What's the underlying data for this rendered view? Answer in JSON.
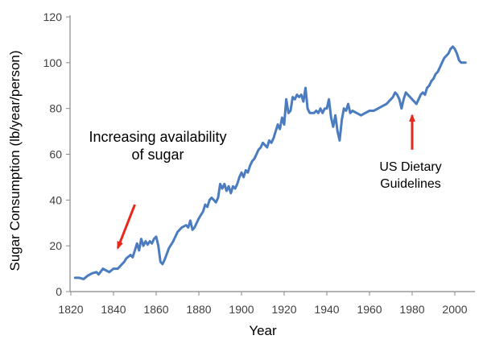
{
  "chart_data": {
    "type": "line",
    "title": "",
    "xlabel": "Year",
    "ylabel": "Sugar Consumption (lb/year/person)",
    "xlim": [
      1820,
      2010
    ],
    "ylim": [
      0,
      120
    ],
    "x_ticks": [
      1820,
      1840,
      1860,
      1880,
      1900,
      1920,
      1940,
      1960,
      1980,
      2000
    ],
    "y_ticks": [
      0,
      20,
      40,
      60,
      80,
      100,
      120
    ],
    "grid": false,
    "colors": {
      "line": "#4a7cbf",
      "arrow": "#e8281e",
      "axis": "#888888"
    },
    "series": [
      {
        "name": "",
        "points": [
          [
            1822,
            6
          ],
          [
            1824,
            6
          ],
          [
            1826,
            5.5
          ],
          [
            1828,
            7
          ],
          [
            1830,
            8
          ],
          [
            1832,
            8.5
          ],
          [
            1833,
            7.5
          ],
          [
            1835,
            10
          ],
          [
            1836,
            9.5
          ],
          [
            1838,
            8.5
          ],
          [
            1840,
            10
          ],
          [
            1842,
            10
          ],
          [
            1844,
            12
          ],
          [
            1845,
            13
          ],
          [
            1846,
            14.5
          ],
          [
            1848,
            16
          ],
          [
            1849,
            15
          ],
          [
            1850,
            18
          ],
          [
            1851,
            21
          ],
          [
            1852,
            18
          ],
          [
            1853,
            23
          ],
          [
            1854,
            20
          ],
          [
            1855,
            22
          ],
          [
            1856,
            20.5
          ],
          [
            1857,
            22
          ],
          [
            1858,
            21
          ],
          [
            1859,
            23
          ],
          [
            1860,
            24
          ],
          [
            1861,
            20
          ],
          [
            1862,
            13
          ],
          [
            1863,
            12
          ],
          [
            1864,
            14
          ],
          [
            1866,
            19
          ],
          [
            1868,
            22
          ],
          [
            1870,
            26
          ],
          [
            1872,
            28
          ],
          [
            1874,
            29
          ],
          [
            1875,
            28
          ],
          [
            1876,
            31
          ],
          [
            1877,
            27
          ],
          [
            1878,
            28
          ],
          [
            1879,
            30
          ],
          [
            1880,
            32
          ],
          [
            1882,
            35
          ],
          [
            1883,
            38
          ],
          [
            1884,
            37
          ],
          [
            1885,
            40
          ],
          [
            1886,
            41
          ],
          [
            1887,
            40
          ],
          [
            1888,
            39
          ],
          [
            1889,
            41
          ],
          [
            1890,
            47
          ],
          [
            1891,
            45
          ],
          [
            1892,
            47
          ],
          [
            1893,
            44
          ],
          [
            1894,
            46
          ],
          [
            1895,
            43
          ],
          [
            1896,
            46
          ],
          [
            1897,
            45
          ],
          [
            1898,
            47
          ],
          [
            1899,
            50
          ],
          [
            1900,
            52
          ],
          [
            1901,
            50
          ],
          [
            1902,
            53
          ],
          [
            1903,
            52
          ],
          [
            1904,
            55
          ],
          [
            1905,
            57
          ],
          [
            1906,
            58
          ],
          [
            1907,
            60
          ],
          [
            1908,
            62
          ],
          [
            1909,
            63
          ],
          [
            1910,
            65
          ],
          [
            1911,
            64
          ],
          [
            1912,
            63
          ],
          [
            1913,
            66
          ],
          [
            1914,
            65
          ],
          [
            1915,
            67
          ],
          [
            1916,
            70
          ],
          [
            1917,
            73
          ],
          [
            1918,
            71
          ],
          [
            1919,
            76
          ],
          [
            1920,
            73
          ],
          [
            1921,
            84
          ],
          [
            1922,
            78
          ],
          [
            1923,
            79
          ],
          [
            1924,
            85
          ],
          [
            1925,
            84
          ],
          [
            1926,
            86
          ],
          [
            1927,
            85
          ],
          [
            1928,
            86
          ],
          [
            1929,
            83
          ],
          [
            1930,
            89
          ],
          [
            1931,
            80
          ],
          [
            1932,
            78
          ],
          [
            1934,
            78
          ],
          [
            1935,
            79
          ],
          [
            1936,
            78
          ],
          [
            1937,
            80
          ],
          [
            1938,
            78
          ],
          [
            1939,
            80
          ],
          [
            1940,
            80
          ],
          [
            1941,
            84
          ],
          [
            1942,
            76
          ],
          [
            1943,
            72
          ],
          [
            1944,
            77
          ],
          [
            1945,
            70
          ],
          [
            1946,
            66
          ],
          [
            1947,
            75
          ],
          [
            1948,
            80
          ],
          [
            1949,
            79
          ],
          [
            1950,
            82
          ],
          [
            1951,
            78
          ],
          [
            1952,
            79
          ],
          [
            1954,
            78
          ],
          [
            1956,
            77
          ],
          [
            1958,
            78
          ],
          [
            1960,
            79
          ],
          [
            1962,
            79
          ],
          [
            1964,
            80
          ],
          [
            1966,
            81
          ],
          [
            1968,
            82
          ],
          [
            1970,
            84
          ],
          [
            1971,
            85
          ],
          [
            1972,
            87
          ],
          [
            1973,
            86
          ],
          [
            1974,
            84
          ],
          [
            1975,
            80
          ],
          [
            1976,
            84
          ],
          [
            1977,
            87
          ],
          [
            1978,
            86
          ],
          [
            1979,
            85
          ],
          [
            1980,
            84
          ],
          [
            1981,
            83
          ],
          [
            1982,
            82
          ],
          [
            1983,
            84
          ],
          [
            1984,
            86
          ],
          [
            1985,
            87
          ],
          [
            1986,
            86
          ],
          [
            1987,
            89
          ],
          [
            1988,
            90
          ],
          [
            1989,
            92
          ],
          [
            1990,
            93
          ],
          [
            1991,
            95
          ],
          [
            1992,
            96
          ],
          [
            1993,
            98
          ],
          [
            1994,
            100
          ],
          [
            1995,
            102
          ],
          [
            1996,
            103
          ],
          [
            1997,
            104
          ],
          [
            1998,
            106
          ],
          [
            1999,
            107
          ],
          [
            2000,
            106
          ],
          [
            2001,
            104
          ],
          [
            2002,
            101
          ],
          [
            2003,
            100
          ],
          [
            2004,
            100
          ],
          [
            2005,
            100
          ]
        ]
      }
    ],
    "annotations": [
      {
        "lines": [
          "Increasing availability",
          "of sugar"
        ],
        "arrow_to": [
          1842,
          19
        ],
        "arrow_from": [
          1850,
          38
        ]
      },
      {
        "lines": [
          "US Dietary",
          "Guidelines"
        ],
        "arrow_to": [
          1980,
          77
        ],
        "arrow_from": [
          1980,
          62
        ]
      }
    ]
  }
}
